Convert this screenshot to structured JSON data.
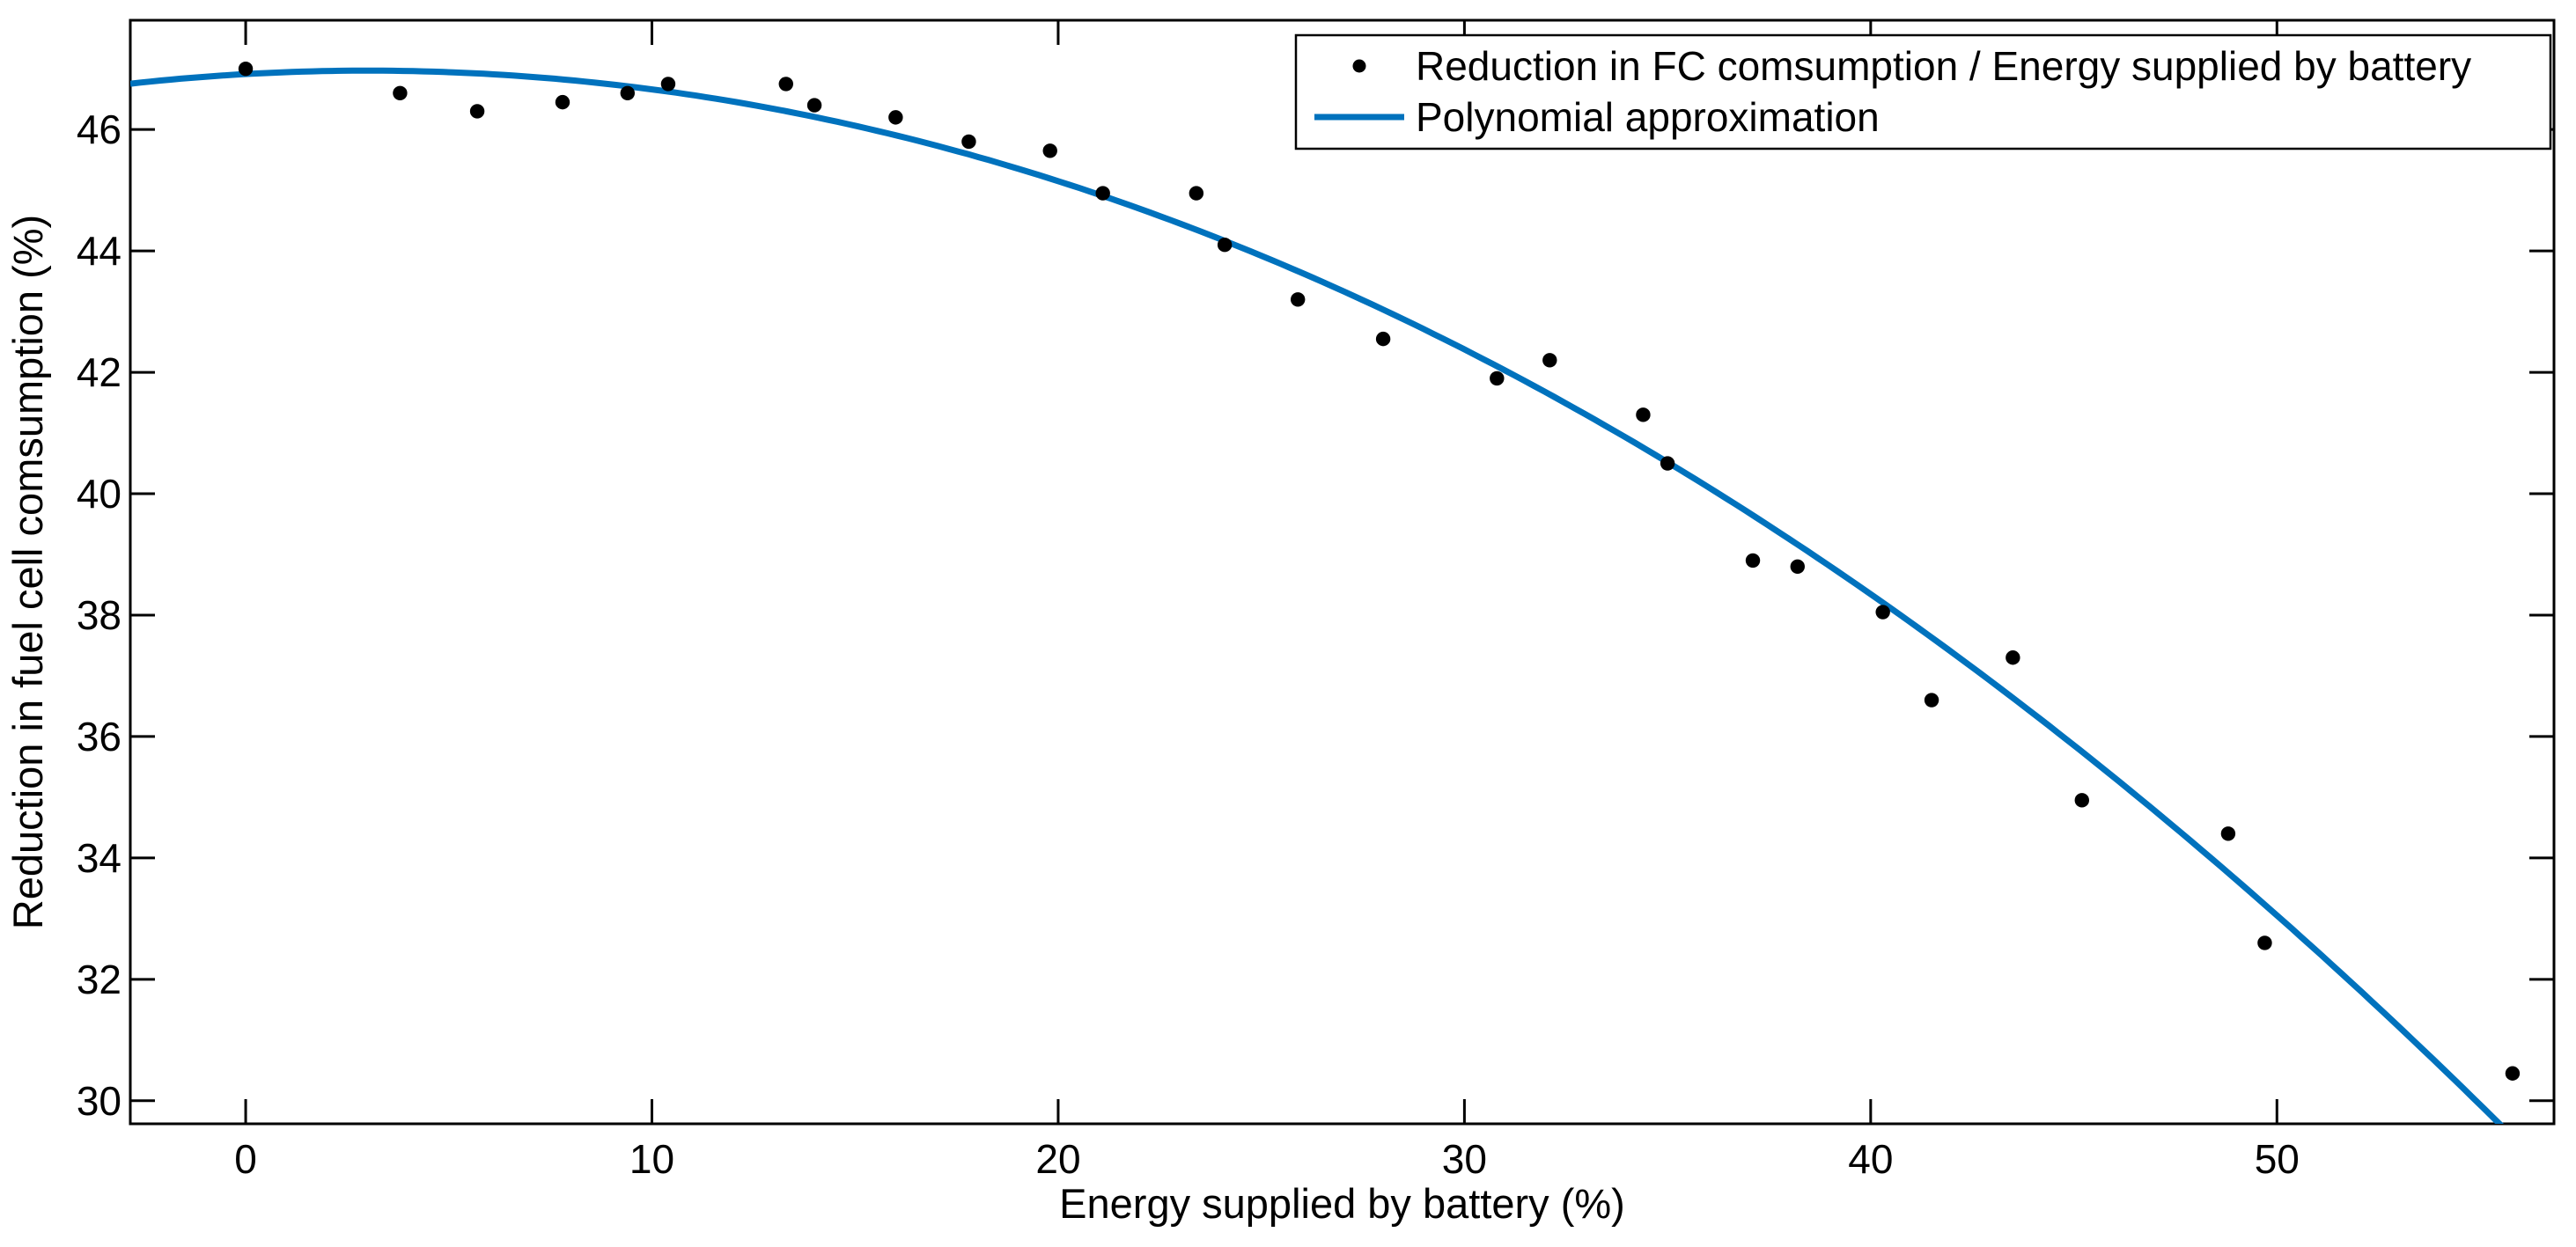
{
  "figure": {
    "background": "#ffffff",
    "axis_color": "#000000"
  },
  "chart_data": {
    "type": "scatter",
    "title": "",
    "xlabel": "Energy supplied by battery (%)",
    "ylabel": "Reduction in fuel cell comsumption (%)",
    "xlim": [
      -2.84,
      56.82
    ],
    "ylim": [
      29.62,
      47.8
    ],
    "xticks": [
      0,
      10,
      20,
      30,
      40,
      50
    ],
    "yticks": [
      30,
      32,
      34,
      36,
      38,
      40,
      42,
      44,
      46
    ],
    "grid": false,
    "legend_position": "top-right",
    "legend": {
      "entries": [
        {
          "label": "Reduction in FC comsumption / Energy supplied by battery",
          "marker": "dot",
          "color": "#000000"
        },
        {
          "label": "Polynomial approximation",
          "marker": "line",
          "color": "#0072BD"
        }
      ]
    },
    "series": [
      {
        "name": "Reduction in FC comsumption / Energy supplied by battery",
        "type": "scatter",
        "marker": "dot",
        "color": "#000000",
        "points": [
          [
            0.0,
            47.0
          ],
          [
            3.8,
            46.6
          ],
          [
            5.7,
            46.3
          ],
          [
            7.8,
            46.45
          ],
          [
            9.4,
            46.6
          ],
          [
            10.4,
            46.75
          ],
          [
            13.3,
            46.75
          ],
          [
            14.0,
            46.4
          ],
          [
            16.0,
            46.2
          ],
          [
            17.8,
            45.8
          ],
          [
            19.8,
            45.65
          ],
          [
            21.1,
            44.95
          ],
          [
            23.4,
            44.95
          ],
          [
            24.1,
            44.1
          ],
          [
            25.9,
            43.2
          ],
          [
            28.0,
            42.55
          ],
          [
            30.8,
            41.9
          ],
          [
            32.1,
            42.2
          ],
          [
            34.4,
            41.3
          ],
          [
            35.0,
            40.5
          ],
          [
            37.1,
            38.9
          ],
          [
            38.2,
            38.8
          ],
          [
            40.3,
            38.05
          ],
          [
            41.5,
            36.6
          ],
          [
            43.5,
            37.3
          ],
          [
            45.2,
            34.95
          ],
          [
            48.8,
            34.4
          ],
          [
            49.7,
            32.6
          ],
          [
            55.8,
            30.45
          ]
        ]
      },
      {
        "name": "Polynomial approximation",
        "type": "line",
        "color": "#0072BD",
        "polynomial_form": "y = c0 + c1*x + c2*x^2",
        "polynomial_coeffs": [
          46.9133,
          0.0378,
          -0.0063
        ]
      }
    ]
  }
}
